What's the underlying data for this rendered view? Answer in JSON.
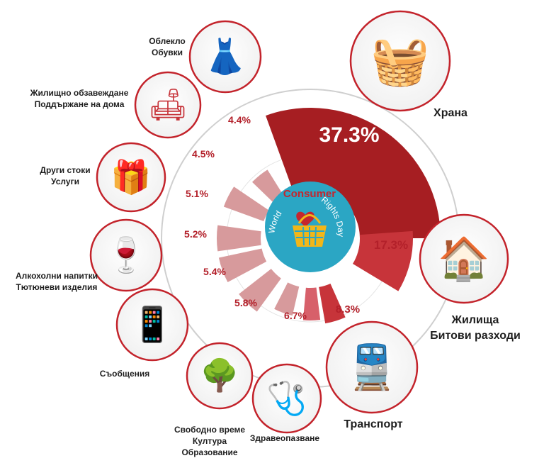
{
  "chart_data": {
    "type": "bar",
    "layout": "radial",
    "categories": [
      [
        "Храна"
      ],
      [
        "Жилища",
        "Битови разходи"
      ],
      [
        "Транспорт"
      ],
      [
        "Здравеопазване"
      ],
      [
        "Свободно време",
        "Култура",
        "Образование"
      ],
      [
        "Съобщения"
      ],
      [
        "Алкохолни напитки",
        "Тютюневи изделия"
      ],
      [
        "Други стоки",
        "Услуги"
      ],
      [
        "Жилищно обзавеждане",
        "Поддържане на дома"
      ],
      [
        "Облекло",
        "Обувки"
      ]
    ],
    "values": [
      37.3,
      17.3,
      8.3,
      6.7,
      5.8,
      5.4,
      5.2,
      5.1,
      4.5,
      4.4
    ],
    "value_labels": [
      "37.3%",
      "17.3%",
      "8.3%",
      "6.7%",
      "5.8%",
      "5.4%",
      "5.2%",
      "5.1%",
      "4.5%",
      "4.4%"
    ],
    "unit": "%"
  },
  "center": {
    "title": "Consumer",
    "arc_left": "World",
    "arc_right": "Rights Day"
  },
  "icons": [
    "grocery-basket-icon",
    "house-icon",
    "transport-icon",
    "doctor-icon",
    "culture-tree-icon",
    "communications-icon",
    "wine-tobacco-icon",
    "gift-goods-icon",
    "home-furnishing-icon",
    "clothing-icon"
  ],
  "colors": {
    "largest": "#a61e22",
    "large": "#c7343a",
    "medium": "#d7606a",
    "small": "#d79a9c",
    "label": "#b3202a",
    "center_circle": "#2ba6c4",
    "basket": "#f2b619"
  }
}
